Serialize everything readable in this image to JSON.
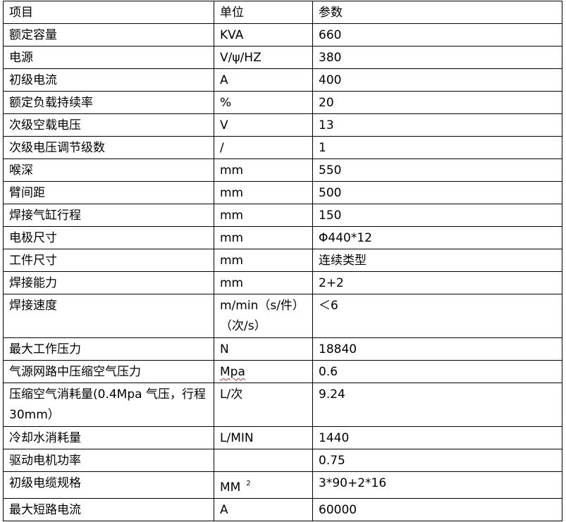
{
  "header": {
    "item": "项目",
    "unit": "单位",
    "value": "参数"
  },
  "rows": [
    {
      "item": "额定容量",
      "unit": "KVA",
      "value": "660"
    },
    {
      "item": "电源",
      "unit": "V/ψ/HZ",
      "value": "380"
    },
    {
      "item": "初级电流",
      "unit": "A",
      "value": "400"
    },
    {
      "item": "额定负载持续率",
      "unit": "%",
      "value": "20"
    },
    {
      "item": "次级空载电压",
      "unit": "V",
      "value": "13"
    },
    {
      "item": "次级电压调节级数",
      "unit": "/",
      "value": "1"
    },
    {
      "item": "喉深",
      "unit": "mm",
      "value": "550"
    },
    {
      "item": "臂间距",
      "unit": "mm",
      "value": "500"
    },
    {
      "item": "焊接气缸行程",
      "unit": "mm",
      "value": "150"
    },
    {
      "item": "电极尺寸",
      "unit": "mm",
      "value": "Φ440*12"
    },
    {
      "item": "工件尺寸",
      "unit": "mm",
      "value": "连续类型"
    },
    {
      "item": "焊接能力",
      "unit": "mm",
      "value": "2+2"
    },
    {
      "item": "焊接速度",
      "unit": "m/min（s/件）（次/s）",
      "value": "＜6"
    },
    {
      "item": "最大工作压力",
      "unit": "N",
      "value": "18840"
    },
    {
      "item": "气源网路中压缩空气压力",
      "unit": "Mpa",
      "value": "0.6"
    },
    {
      "item": "压缩空气消耗量(0.4Mpa 气压，行程 30mm）",
      "unit": "L/次",
      "value": "9.24"
    },
    {
      "item": "冷却水消耗量",
      "unit": "L/MIN",
      "value": "1440"
    },
    {
      "item": "驱动电机功率",
      "unit": "",
      "value": "0.75"
    },
    {
      "item": "初级电缆规格",
      "unit": "MM",
      "unit_sup": "2",
      "value": "3*90+2*16"
    },
    {
      "item": "最大短路电流",
      "unit": "A",
      "value": "60000"
    }
  ]
}
